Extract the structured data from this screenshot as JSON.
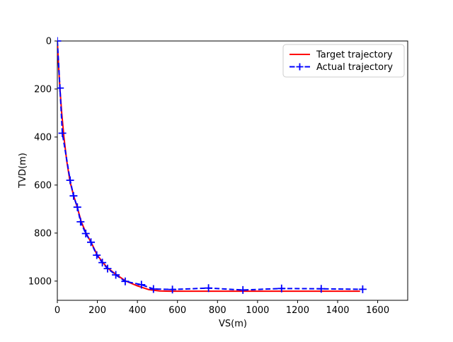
{
  "figure": {
    "background": "#ffffff"
  },
  "chart_data": {
    "type": "line",
    "title": "",
    "xlabel": "VS(m)",
    "ylabel": "TVD(m)",
    "xlim": [
      0,
      1750
    ],
    "ylim": [
      0,
      1080
    ],
    "y_axis_inverted": true,
    "xticks": [
      0,
      200,
      400,
      600,
      800,
      1000,
      1200,
      1400,
      1600
    ],
    "yticks": [
      0,
      200,
      400,
      600,
      800,
      1000
    ],
    "grid": false,
    "legend": {
      "position": "upper right",
      "background": "#ffffff",
      "border_color": "#cccccc"
    },
    "series": [
      {
        "name": "Target trajectory",
        "color": "#ff0000",
        "line_style": "solid",
        "marker": "none",
        "points": [
          [
            0,
            0
          ],
          [
            6,
            100
          ],
          [
            13,
            200
          ],
          [
            22,
            300
          ],
          [
            33,
            400
          ],
          [
            47,
            500
          ],
          [
            64,
            588
          ],
          [
            82,
            646
          ],
          [
            100,
            694
          ],
          [
            119,
            752
          ],
          [
            144,
            801
          ],
          [
            169,
            839
          ],
          [
            199,
            891
          ],
          [
            226,
            921
          ],
          [
            252,
            946
          ],
          [
            293,
            972
          ],
          [
            340,
            999
          ],
          [
            400,
            1020
          ],
          [
            455,
            1035
          ],
          [
            510,
            1041
          ],
          [
            560,
            1042
          ],
          [
            1512,
            1042
          ]
        ]
      },
      {
        "name": "Actual trajectory",
        "color": "#0000ff",
        "line_style": "dashed",
        "marker": "plus",
        "points": [
          [
            0,
            0
          ],
          [
            13,
            196
          ],
          [
            25,
            384
          ],
          [
            64,
            580
          ],
          [
            81,
            645
          ],
          [
            100,
            692
          ],
          [
            116,
            753
          ],
          [
            142,
            802
          ],
          [
            168,
            838
          ],
          [
            197,
            892
          ],
          [
            225,
            923
          ],
          [
            251,
            948
          ],
          [
            292,
            974
          ],
          [
            339,
            1001
          ],
          [
            420,
            1015
          ],
          [
            480,
            1033
          ],
          [
            575,
            1035
          ],
          [
            755,
            1029
          ],
          [
            927,
            1037
          ],
          [
            1120,
            1031
          ],
          [
            1318,
            1032
          ],
          [
            1525,
            1034
          ]
        ]
      }
    ]
  }
}
